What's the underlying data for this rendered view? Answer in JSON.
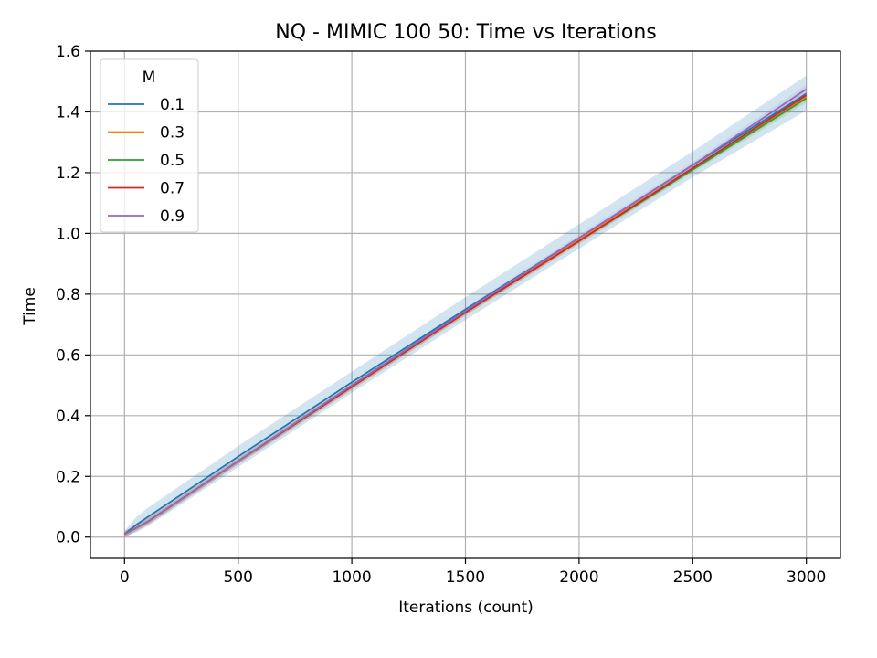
{
  "chart_data": {
    "type": "line",
    "title": "NQ - MIMIC 100 50: Time vs Iterations",
    "xlabel": "Iterations (count)",
    "ylabel": "Time",
    "xlim": [
      -150,
      3150
    ],
    "ylim": [
      -0.07,
      1.6
    ],
    "xticks": [
      0,
      500,
      1000,
      1500,
      2000,
      2500,
      3000
    ],
    "xtick_labels": [
      "0",
      "500",
      "1000",
      "1500",
      "2000",
      "2500",
      "3000"
    ],
    "yticks": [
      0.0,
      0.2,
      0.4,
      0.6,
      0.8,
      1.0,
      1.2,
      1.4,
      1.6
    ],
    "ytick_labels": [
      "0.0",
      "0.2",
      "0.4",
      "0.6",
      "0.8",
      "1.0",
      "1.2",
      "1.4",
      "1.6"
    ],
    "grid": true,
    "legend": {
      "title": "M",
      "placement": "top-left"
    },
    "x": [
      0,
      50,
      100,
      500,
      1000,
      1500,
      2000,
      2500,
      3000
    ],
    "series": [
      {
        "name": "0.1",
        "color": "#1f77b4",
        "values": [
          0.01,
          0.04,
          0.065,
          0.265,
          0.51,
          0.75,
          0.985,
          1.225,
          1.46
        ],
        "band": {
          "lower": [
            0.0,
            0.015,
            0.035,
            0.23,
            0.475,
            0.715,
            0.95,
            1.185,
            1.405
          ],
          "upper": [
            0.02,
            0.065,
            0.095,
            0.3,
            0.545,
            0.79,
            1.03,
            1.27,
            1.52
          ]
        }
      },
      {
        "name": "0.3",
        "color": "#ff7f0e",
        "values": [
          0.01,
          0.03,
          0.05,
          0.25,
          0.495,
          0.74,
          0.98,
          1.215,
          1.45
        ],
        "band": {
          "lower": [
            0.0,
            0.02,
            0.04,
            0.24,
            0.485,
            0.73,
            0.97,
            1.205,
            1.435
          ],
          "upper": [
            0.02,
            0.04,
            0.06,
            0.26,
            0.505,
            0.75,
            0.99,
            1.225,
            1.465
          ]
        }
      },
      {
        "name": "0.5",
        "color": "#2ca02c",
        "values": [
          0.01,
          0.03,
          0.05,
          0.25,
          0.495,
          0.74,
          0.975,
          1.21,
          1.445
        ],
        "band": {
          "lower": [
            0.0,
            0.02,
            0.04,
            0.24,
            0.485,
            0.73,
            0.965,
            1.2,
            1.43
          ],
          "upper": [
            0.02,
            0.04,
            0.06,
            0.26,
            0.505,
            0.75,
            0.985,
            1.22,
            1.46
          ]
        }
      },
      {
        "name": "0.7",
        "color": "#d62728",
        "values": [
          0.01,
          0.03,
          0.05,
          0.25,
          0.495,
          0.74,
          0.975,
          1.215,
          1.455
        ],
        "band": {
          "lower": [
            0.0,
            0.02,
            0.04,
            0.24,
            0.485,
            0.73,
            0.965,
            1.205,
            1.44
          ],
          "upper": [
            0.02,
            0.04,
            0.06,
            0.26,
            0.505,
            0.75,
            0.985,
            1.225,
            1.47
          ]
        }
      },
      {
        "name": "0.9",
        "color": "#9467bd",
        "values": [
          0.01,
          0.03,
          0.05,
          0.25,
          0.5,
          0.745,
          0.985,
          1.225,
          1.475
        ],
        "band": {
          "lower": [
            0.0,
            0.02,
            0.04,
            0.24,
            0.49,
            0.735,
            0.975,
            1.215,
            1.46
          ],
          "upper": [
            0.02,
            0.04,
            0.06,
            0.26,
            0.51,
            0.755,
            0.995,
            1.235,
            1.49
          ]
        }
      }
    ]
  }
}
